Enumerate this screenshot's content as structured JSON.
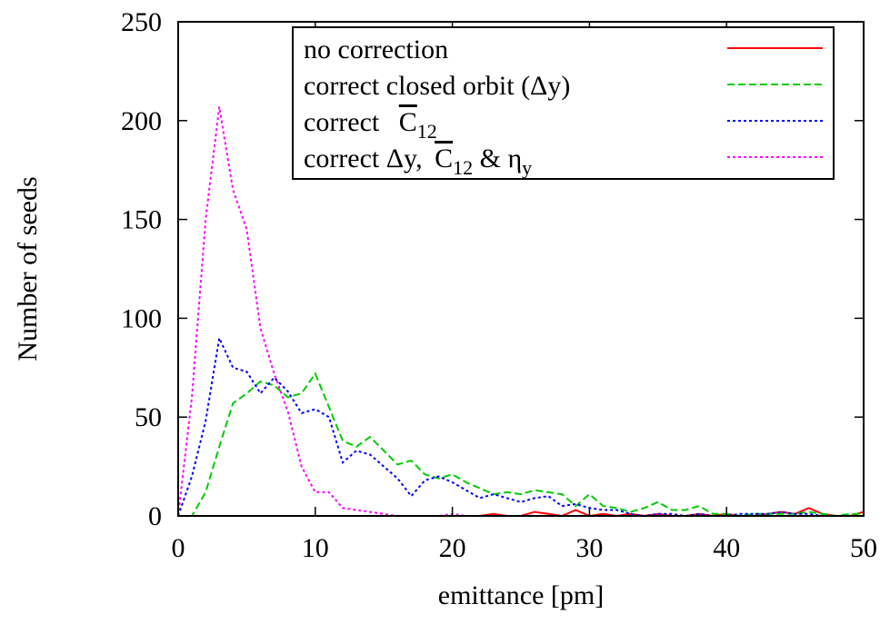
{
  "chart_data": {
    "type": "line",
    "xlabel": "emittance [pm]",
    "ylabel": "Number of seeds",
    "xlim": [
      0,
      50
    ],
    "ylim": [
      0,
      250
    ],
    "xticks": [
      0,
      10,
      20,
      30,
      40,
      50
    ],
    "yticks": [
      0,
      50,
      100,
      150,
      200,
      250
    ],
    "grid": false,
    "legend_position": "top-right",
    "x": [
      0,
      1,
      2,
      3,
      4,
      5,
      6,
      7,
      8,
      9,
      10,
      11,
      12,
      13,
      14,
      15,
      16,
      17,
      18,
      19,
      20,
      21,
      22,
      23,
      24,
      25,
      26,
      27,
      28,
      29,
      30,
      31,
      32,
      33,
      34,
      35,
      36,
      37,
      38,
      39,
      40,
      41,
      42,
      43,
      44,
      45,
      46,
      47,
      48,
      49,
      50
    ],
    "series": [
      {
        "name": "no correction",
        "color": "#ff0000",
        "dash": "solid",
        "values": [
          0,
          0,
          0,
          0,
          0,
          0,
          0,
          0,
          0,
          0,
          0,
          0,
          0,
          0,
          0,
          0,
          0,
          0,
          0,
          0,
          0,
          0,
          0,
          1,
          0,
          0,
          2,
          1,
          0,
          3,
          0,
          1,
          0,
          1,
          0,
          1,
          0,
          0,
          1,
          0,
          1,
          0,
          0,
          1,
          2,
          1,
          4,
          1,
          0,
          0,
          2
        ]
      },
      {
        "name": "correct closed orbit (Δy)",
        "color": "#00cc00",
        "dash": "dashed",
        "values": [
          0,
          0,
          12,
          35,
          57,
          62,
          68,
          66,
          60,
          62,
          72,
          55,
          38,
          35,
          40,
          33,
          26,
          28,
          21,
          19,
          21,
          17,
          14,
          11,
          12,
          11,
          13,
          12,
          11,
          5,
          11,
          5,
          4,
          2,
          4,
          7,
          3,
          3,
          5,
          1,
          1,
          0,
          1,
          1,
          1,
          1,
          2,
          1,
          0,
          1,
          1
        ]
      },
      {
        "name": "correct C̄₁₂",
        "color": "#0000ff",
        "dash": "dotted",
        "values": [
          0,
          20,
          48,
          90,
          75,
          73,
          62,
          70,
          63,
          52,
          54,
          50,
          27,
          33,
          31,
          25,
          19,
          10,
          18,
          20,
          17,
          13,
          9,
          11,
          9,
          7,
          9,
          10,
          5,
          6,
          4,
          3,
          3,
          1,
          0,
          1,
          1,
          0,
          1,
          0,
          0,
          1,
          1,
          1,
          2,
          1,
          1,
          0,
          0,
          0,
          0
        ]
      },
      {
        "name": "correct Δy, C̄₁₂ & η_y",
        "color": "#ff00ff",
        "dash": "dotted",
        "values": [
          0,
          60,
          150,
          207,
          165,
          145,
          95,
          72,
          53,
          25,
          12,
          12,
          4,
          3,
          2,
          1,
          0,
          0,
          0,
          0,
          1,
          0,
          0,
          0,
          0,
          0,
          0,
          0,
          0,
          0,
          0,
          0,
          0,
          0,
          0,
          0,
          0,
          0,
          0,
          0,
          0,
          0,
          0,
          0,
          0,
          0,
          0,
          0,
          0,
          0,
          0
        ]
      }
    ]
  }
}
